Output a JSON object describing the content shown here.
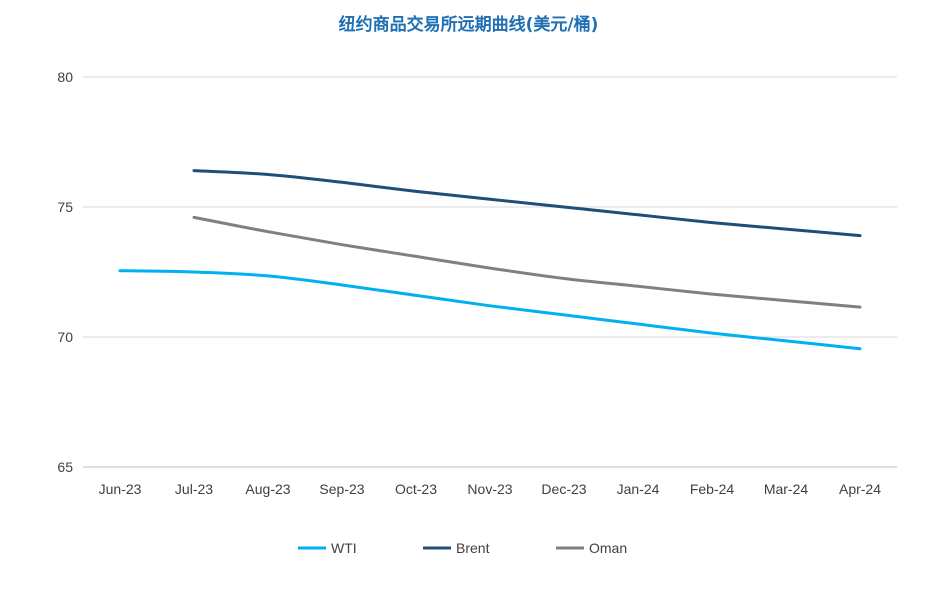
{
  "chart_data": {
    "type": "line",
    "title": "纽约商品交易所远期曲线(美元/桶)",
    "xlabel": "",
    "ylabel": "",
    "categories": [
      "Jun-23",
      "Jul-23",
      "Aug-23",
      "Sep-23",
      "Oct-23",
      "Nov-23",
      "Dec-23",
      "Jan-24",
      "Feb-24",
      "Mar-24",
      "Apr-24"
    ],
    "ylim": [
      65,
      80
    ],
    "yticks": [
      "65",
      "70",
      "75",
      "80"
    ],
    "grid": "horizontal",
    "legend_position": "bottom",
    "series": [
      {
        "name": "WTI",
        "color": "#00b0f0",
        "values": [
          72.55,
          72.5,
          72.35,
          72.0,
          71.6,
          71.2,
          70.85,
          70.5,
          70.15,
          69.85,
          69.55
        ]
      },
      {
        "name": "Brent",
        "color": "#1f4e79",
        "values": [
          null,
          76.4,
          76.25,
          75.95,
          75.6,
          75.3,
          75.0,
          74.7,
          74.4,
          74.15,
          73.9
        ]
      },
      {
        "name": "Oman",
        "color": "#808080",
        "values": [
          null,
          74.6,
          74.05,
          73.55,
          73.1,
          72.65,
          72.25,
          71.95,
          71.65,
          71.4,
          71.15
        ]
      }
    ]
  }
}
